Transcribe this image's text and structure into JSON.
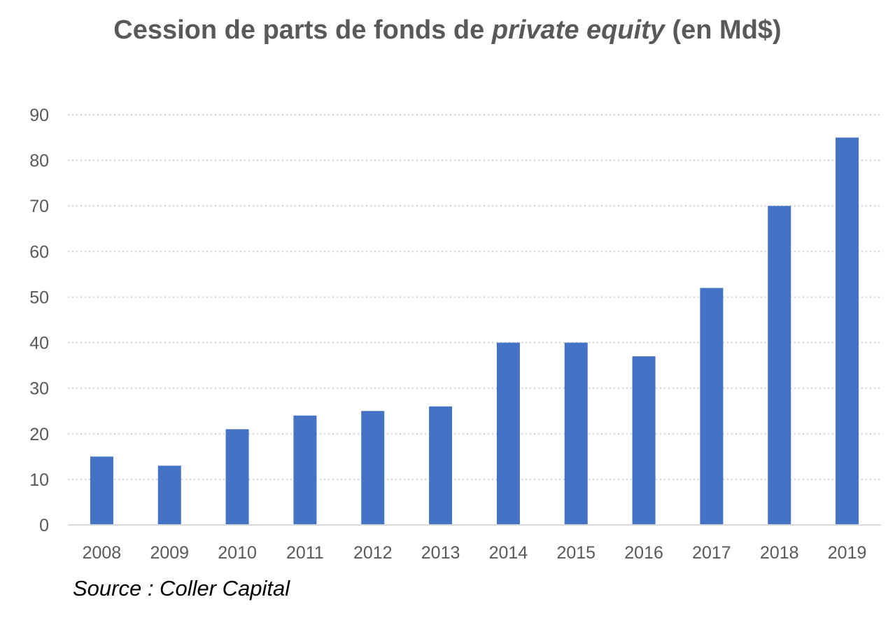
{
  "chart_data": {
    "type": "bar",
    "title_part1": "Cession de parts de fonds de ",
    "title_italic": "private equity",
    "title_part2": " (en Md$)",
    "categories": [
      "2008",
      "2009",
      "2010",
      "2011",
      "2012",
      "2013",
      "2014",
      "2015",
      "2016",
      "2017",
      "2018",
      "2019"
    ],
    "values": [
      15,
      13,
      21,
      24,
      25,
      26,
      40,
      40,
      37,
      52,
      70,
      85
    ],
    "ylim": [
      0,
      90
    ],
    "yticks": [
      0,
      10,
      20,
      30,
      40,
      50,
      60,
      70,
      80,
      90
    ],
    "grid": true,
    "bar_color": "#4472C4",
    "source": "Source : Coller Capital"
  }
}
